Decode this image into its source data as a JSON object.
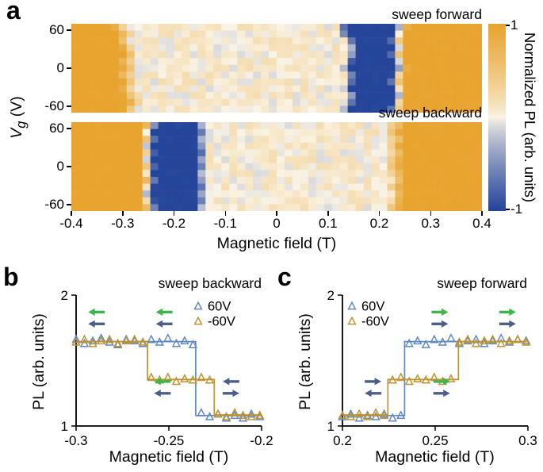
{
  "panel_labels": {
    "a": "a",
    "b": "b",
    "c": "c"
  },
  "colors": {
    "heat_orange": "#E8A42F",
    "heat_blue": "#24459A",
    "heat_cream": "#FBF5E8",
    "series_60v": "#5E89C4",
    "series_neg60v": "#BE9330",
    "arrow_green": "#3CB54A",
    "arrow_slate": "#4E5E86",
    "axis": "#000000"
  },
  "colorbar": {
    "label": "Normalized PL (arb. units)",
    "tick_top": "1",
    "tick_bottom": "-1",
    "range": [
      -1,
      1
    ]
  },
  "chart_data": [
    {
      "id": "heatmap_sweep_forward",
      "type": "heatmap",
      "title": "sweep forward",
      "xlabel": "Magnetic field (T)",
      "ylabel_parts": {
        "base": "V",
        "sub": "g",
        "unit": " (V)"
      },
      "x_range": [
        -0.4,
        0.4
      ],
      "y_range": [
        -70,
        70
      ],
      "x_tick_labels": [
        "-0.4",
        "-0.3",
        "-0.2",
        "-0.1",
        "0",
        "0.1",
        "0.2",
        "0.3",
        "0.4"
      ],
      "x_tick_values": [
        -0.4,
        -0.3,
        -0.2,
        -0.1,
        0,
        0.1,
        0.2,
        0.3,
        0.4
      ],
      "y_tick_labels": [
        "60",
        "0",
        "-60"
      ],
      "y_tick_values": [
        60,
        0,
        -60
      ],
      "value_levels": {
        "saturated": 1,
        "plateau": 0.05,
        "dip": -1
      },
      "direction": "forward",
      "regions_by_row": [
        {
          "vg": 60,
          "orange_left_end": -0.3,
          "dip_start": 0.13,
          "dip_end": 0.236
        },
        {
          "vg": 50,
          "orange_left_end": -0.289,
          "dip_start": 0.133,
          "dip_end": 0.23
        },
        {
          "vg": 40,
          "orange_left_end": -0.296,
          "dip_start": 0.148,
          "dip_end": 0.226
        },
        {
          "vg": 30,
          "orange_left_end": -0.286,
          "dip_start": 0.155,
          "dip_end": 0.231
        },
        {
          "vg": 20,
          "orange_left_end": -0.279,
          "dip_start": 0.151,
          "dip_end": 0.225
        },
        {
          "vg": 10,
          "orange_left_end": -0.29,
          "dip_start": 0.144,
          "dip_end": 0.231
        },
        {
          "vg": 0,
          "orange_left_end": -0.283,
          "dip_start": 0.139,
          "dip_end": 0.236
        },
        {
          "vg": -10,
          "orange_left_end": -0.29,
          "dip_start": 0.15,
          "dip_end": 0.229
        },
        {
          "vg": -20,
          "orange_left_end": -0.281,
          "dip_start": 0.146,
          "dip_end": 0.224
        },
        {
          "vg": -30,
          "orange_left_end": -0.288,
          "dip_start": 0.141,
          "dip_end": 0.23
        },
        {
          "vg": -40,
          "orange_left_end": -0.279,
          "dip_start": 0.15,
          "dip_end": 0.234
        },
        {
          "vg": -50,
          "orange_left_end": -0.272,
          "dip_start": 0.146,
          "dip_end": 0.229
        },
        {
          "vg": -60,
          "orange_left_end": -0.281,
          "dip_start": 0.14,
          "dip_end": 0.225
        }
      ]
    },
    {
      "id": "heatmap_sweep_backward",
      "type": "heatmap",
      "title": "sweep backward",
      "direction": "backward",
      "x_range": [
        -0.4,
        0.4
      ],
      "y_range": [
        -70,
        70
      ],
      "y_tick_labels": [
        "60",
        "0",
        "-60"
      ],
      "y_tick_values": [
        60,
        0,
        -60
      ],
      "regions_by_row": [
        {
          "vg": 60,
          "dip_start": -0.238,
          "dip_end": -0.152,
          "orange_right_start": 0.228
        },
        {
          "vg": 50,
          "dip_start": -0.245,
          "dip_end": -0.148,
          "orange_right_start": 0.221
        },
        {
          "vg": 40,
          "dip_start": -0.24,
          "dip_end": -0.155,
          "orange_right_start": 0.23
        },
        {
          "vg": 30,
          "dip_start": -0.248,
          "dip_end": -0.15,
          "orange_right_start": 0.224
        },
        {
          "vg": 20,
          "dip_start": -0.242,
          "dip_end": -0.146,
          "orange_right_start": 0.232
        },
        {
          "vg": 10,
          "dip_start": -0.247,
          "dip_end": -0.153,
          "orange_right_start": 0.226
        },
        {
          "vg": 0,
          "dip_start": -0.241,
          "dip_end": -0.149,
          "orange_right_start": 0.222
        },
        {
          "vg": -10,
          "dip_start": -0.246,
          "dip_end": -0.155,
          "orange_right_start": 0.229
        },
        {
          "vg": -20,
          "dip_start": -0.239,
          "dip_end": -0.151,
          "orange_right_start": 0.233
        },
        {
          "vg": -30,
          "dip_start": -0.244,
          "dip_end": -0.147,
          "orange_right_start": 0.225
        },
        {
          "vg": -40,
          "dip_start": -0.249,
          "dip_end": -0.152,
          "orange_right_start": 0.231
        },
        {
          "vg": -50,
          "dip_start": -0.243,
          "dip_end": -0.148,
          "orange_right_start": 0.227
        },
        {
          "vg": -60,
          "dip_start": -0.238,
          "dip_end": -0.154,
          "orange_right_start": 0.223
        }
      ]
    },
    {
      "id": "pl_sweep_backward",
      "type": "scatter",
      "title": "sweep backward",
      "xlabel": "Magnetic field (T)",
      "ylabel": "PL (arb. units)",
      "x_range": [
        -0.3,
        -0.2
      ],
      "y_range": [
        1,
        2
      ],
      "x_tick_labels": [
        "-0.3",
        "-0.25",
        "-0.2"
      ],
      "x_tick_values": [
        -0.3,
        -0.25,
        -0.2
      ],
      "y_tick_labels": [
        "2",
        "1"
      ],
      "y_tick_values": [
        2,
        1
      ],
      "legend_pos": "top-right",
      "series": [
        {
          "name": "60V",
          "color_key": "series_60v",
          "marker": "triangle-up",
          "points": [
            [
              -0.3,
              1.66
            ],
            [
              -0.2955,
              1.63
            ],
            [
              -0.291,
              1.65
            ],
            [
              -0.2865,
              1.67
            ],
            [
              -0.282,
              1.64
            ],
            [
              -0.2775,
              1.62
            ],
            [
              -0.273,
              1.66
            ],
            [
              -0.2685,
              1.65
            ],
            [
              -0.264,
              1.63
            ],
            [
              -0.2595,
              1.66
            ],
            [
              -0.255,
              1.64
            ],
            [
              -0.2505,
              1.67
            ],
            [
              -0.246,
              1.63
            ],
            [
              -0.2415,
              1.65
            ],
            [
              -0.237,
              1.62
            ],
            [
              -0.2325,
              1.1
            ],
            [
              -0.228,
              1.07
            ],
            [
              -0.2235,
              1.09
            ],
            [
              -0.219,
              1.06
            ],
            [
              -0.2145,
              1.08
            ],
            [
              -0.21,
              1.06
            ],
            [
              -0.2055,
              1.09
            ],
            [
              -0.201,
              1.07
            ]
          ],
          "step_line": [
            [
              -0.3,
              1.645
            ],
            [
              -0.2355,
              1.645
            ],
            [
              -0.2355,
              1.08
            ],
            [
              -0.2,
              1.08
            ]
          ]
        },
        {
          "name": "-60V",
          "color_key": "series_neg60v",
          "marker": "triangle-up",
          "points": [
            [
              -0.3,
              1.64
            ],
            [
              -0.2955,
              1.66
            ],
            [
              -0.291,
              1.63
            ],
            [
              -0.2865,
              1.65
            ],
            [
              -0.282,
              1.66
            ],
            [
              -0.2775,
              1.63
            ],
            [
              -0.273,
              1.65
            ],
            [
              -0.2685,
              1.66
            ],
            [
              -0.264,
              1.64
            ],
            [
              -0.2595,
              1.37
            ],
            [
              -0.255,
              1.35
            ],
            [
              -0.2505,
              1.37
            ],
            [
              -0.246,
              1.34
            ],
            [
              -0.2415,
              1.36
            ],
            [
              -0.237,
              1.35
            ],
            [
              -0.2325,
              1.37
            ],
            [
              -0.228,
              1.35
            ],
            [
              -0.2235,
              1.09
            ],
            [
              -0.219,
              1.07
            ],
            [
              -0.2145,
              1.1
            ],
            [
              -0.21,
              1.08
            ],
            [
              -0.2055,
              1.07
            ],
            [
              -0.201,
              1.08
            ]
          ],
          "step_line": [
            [
              -0.3,
              1.645
            ],
            [
              -0.2615,
              1.645
            ],
            [
              -0.2615,
              1.355
            ],
            [
              -0.2255,
              1.355
            ],
            [
              -0.2255,
              1.085
            ],
            [
              -0.2,
              1.085
            ]
          ]
        }
      ],
      "arrows": [
        {
          "x": -0.289,
          "y": 1.87,
          "color": "green",
          "dir": "left"
        },
        {
          "x": -0.289,
          "y": 1.78,
          "color": "slate",
          "dir": "left"
        },
        {
          "x": -0.2525,
          "y": 1.87,
          "color": "green",
          "dir": "left"
        },
        {
          "x": -0.2525,
          "y": 1.78,
          "color": "slate",
          "dir": "left"
        },
        {
          "x": -0.2535,
          "y": 1.34,
          "color": "green",
          "dir": "left"
        },
        {
          "x": -0.2535,
          "y": 1.25,
          "color": "slate",
          "dir": "left"
        },
        {
          "x": -0.2165,
          "y": 1.34,
          "color": "slate",
          "dir": "left"
        },
        {
          "x": -0.2165,
          "y": 1.25,
          "color": "slate",
          "dir": "right"
        }
      ]
    },
    {
      "id": "pl_sweep_forward",
      "type": "scatter",
      "title": "sweep forward",
      "xlabel": "Magnetic field (T)",
      "ylabel": "PL (arb. units)",
      "x_range": [
        0.2,
        0.3
      ],
      "y_range": [
        1,
        2
      ],
      "x_tick_labels": [
        "0.2",
        "0.25",
        "0.3"
      ],
      "x_tick_values": [
        0.2,
        0.25,
        0.3
      ],
      "y_tick_labels": [
        "2",
        "1"
      ],
      "y_tick_values": [
        2,
        1
      ],
      "legend_pos": "top-left",
      "series": [
        {
          "name": "60V",
          "color_key": "series_60v",
          "marker": "triangle-up",
          "points": [
            [
              0.2,
              1.07
            ],
            [
              0.2045,
              1.09
            ],
            [
              0.209,
              1.06
            ],
            [
              0.2135,
              1.08
            ],
            [
              0.218,
              1.07
            ],
            [
              0.2225,
              1.09
            ],
            [
              0.227,
              1.06
            ],
            [
              0.2315,
              1.08
            ],
            [
              0.236,
              1.63
            ],
            [
              0.2405,
              1.65
            ],
            [
              0.245,
              1.62
            ],
            [
              0.2495,
              1.66
            ],
            [
              0.254,
              1.64
            ],
            [
              0.2585,
              1.67
            ],
            [
              0.263,
              1.63
            ],
            [
              0.2675,
              1.65
            ],
            [
              0.272,
              1.66
            ],
            [
              0.2765,
              1.63
            ],
            [
              0.281,
              1.65
            ],
            [
              0.2855,
              1.67
            ],
            [
              0.29,
              1.64
            ],
            [
              0.2945,
              1.66
            ],
            [
              0.299,
              1.65
            ]
          ],
          "step_line": [
            [
              0.2,
              1.08
            ],
            [
              0.2335,
              1.08
            ],
            [
              0.2335,
              1.645
            ],
            [
              0.3,
              1.645
            ]
          ]
        },
        {
          "name": "-60V",
          "color_key": "series_neg60v",
          "marker": "triangle-up",
          "points": [
            [
              0.2,
              1.08
            ],
            [
              0.2045,
              1.07
            ],
            [
              0.209,
              1.09
            ],
            [
              0.2135,
              1.07
            ],
            [
              0.218,
              1.1
            ],
            [
              0.2225,
              1.08
            ],
            [
              0.227,
              1.35
            ],
            [
              0.2315,
              1.37
            ],
            [
              0.236,
              1.34
            ],
            [
              0.2405,
              1.36
            ],
            [
              0.245,
              1.35
            ],
            [
              0.2495,
              1.37
            ],
            [
              0.254,
              1.34
            ],
            [
              0.2585,
              1.36
            ],
            [
              0.263,
              1.64
            ],
            [
              0.2675,
              1.66
            ],
            [
              0.272,
              1.63
            ],
            [
              0.2765,
              1.65
            ],
            [
              0.281,
              1.66
            ],
            [
              0.2855,
              1.63
            ],
            [
              0.29,
              1.65
            ],
            [
              0.2945,
              1.66
            ],
            [
              0.299,
              1.64
            ]
          ],
          "step_line": [
            [
              0.2,
              1.085
            ],
            [
              0.2245,
              1.085
            ],
            [
              0.2245,
              1.355
            ],
            [
              0.2625,
              1.355
            ],
            [
              0.2625,
              1.645
            ],
            [
              0.3,
              1.645
            ]
          ]
        }
      ],
      "arrows": [
        {
          "x": 0.289,
          "y": 1.87,
          "color": "green",
          "dir": "right"
        },
        {
          "x": 0.289,
          "y": 1.78,
          "color": "slate",
          "dir": "right"
        },
        {
          "x": 0.2525,
          "y": 1.87,
          "color": "green",
          "dir": "right"
        },
        {
          "x": 0.2525,
          "y": 1.78,
          "color": "slate",
          "dir": "right"
        },
        {
          "x": 0.2535,
          "y": 1.34,
          "color": "green",
          "dir": "right"
        },
        {
          "x": 0.2535,
          "y": 1.25,
          "color": "slate",
          "dir": "right"
        },
        {
          "x": 0.2165,
          "y": 1.34,
          "color": "slate",
          "dir": "right"
        },
        {
          "x": 0.2165,
          "y": 1.25,
          "color": "slate",
          "dir": "left"
        }
      ]
    }
  ]
}
